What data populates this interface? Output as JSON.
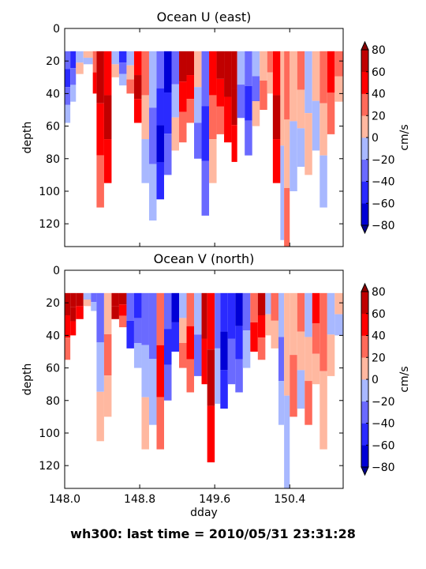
{
  "figure": {
    "suptitle": "wh300: last time = 2010/05/31 23:31:28"
  },
  "chart_data": [
    {
      "type": "heatmap",
      "title": "Ocean U (east)",
      "xlabel": "",
      "ylabel": "depth",
      "xlim": [
        148.0,
        150.97
      ],
      "ylim": [
        134,
        0
      ],
      "yticks": [
        0,
        20,
        40,
        60,
        80,
        100,
        120
      ],
      "xticks": [
        148.0,
        148.8,
        149.6,
        150.4
      ],
      "xticks_labeled": false,
      "colorbar": {
        "label": "cm/s",
        "levels": [
          -80,
          -60,
          -40,
          -20,
          0,
          20,
          40,
          60,
          80
        ],
        "colors": [
          "#0000d6",
          "#2a2aff",
          "#6a6aff",
          "#a8b8ff",
          "#ffb8a0",
          "#ff6a5a",
          "#ff0000",
          "#c00000"
        ],
        "under_color": "#00008f",
        "over_color": "#8a0000",
        "extend": "both"
      },
      "top_depth": 14,
      "columns": [
        {
          "x0": 148.0,
          "x1": 148.06,
          "bins": [
            "-40",
            "-60",
            "-40",
            "-20"
          ],
          "max_depth": 58
        },
        {
          "x0": 148.06,
          "x1": 148.12,
          "bins": [
            "-60",
            "-40",
            "-20"
          ],
          "max_depth": 45
        },
        {
          "x0": 148.12,
          "x1": 148.2,
          "bins": [
            "-20",
            "0"
          ],
          "max_depth": 28
        },
        {
          "x0": 148.2,
          "x1": 148.3,
          "bins": [
            "0",
            "-20"
          ],
          "max_depth": 22
        },
        {
          "x0": 148.3,
          "x1": 148.34,
          "bins": [
            "20",
            "40"
          ],
          "max_depth": 40
        },
        {
          "x0": 148.34,
          "x1": 148.42,
          "bins": [
            "60",
            "40",
            "20"
          ],
          "max_depth": 110
        },
        {
          "x0": 148.42,
          "x1": 148.5,
          "bins": [
            "40",
            "60",
            "40"
          ],
          "max_depth": 95
        },
        {
          "x0": 148.5,
          "x1": 148.58,
          "bins": [
            "-20",
            "0"
          ],
          "max_depth": 30
        },
        {
          "x0": 148.58,
          "x1": 148.66,
          "bins": [
            "-60",
            "-40",
            "-20"
          ],
          "max_depth": 35
        },
        {
          "x0": 148.66,
          "x1": 148.74,
          "bins": [
            "-20",
            "0",
            "20"
          ],
          "max_depth": 40
        },
        {
          "x0": 148.74,
          "x1": 148.82,
          "bins": [
            "40",
            "60",
            "40"
          ],
          "max_depth": 58
        },
        {
          "x0": 148.82,
          "x1": 148.9,
          "bins": [
            "20",
            "0",
            "-20"
          ],
          "max_depth": 95
        },
        {
          "x0": 148.9,
          "x1": 148.98,
          "bins": [
            "-20",
            "-40",
            "-20"
          ],
          "max_depth": 118
        },
        {
          "x0": 148.98,
          "x1": 149.06,
          "bins": [
            "-40",
            "-60",
            "-80",
            "-60"
          ],
          "max_depth": 105
        },
        {
          "x0": 149.06,
          "x1": 149.14,
          "bins": [
            "-80",
            "-60",
            "-40"
          ],
          "max_depth": 90
        },
        {
          "x0": 149.14,
          "x1": 149.22,
          "bins": [
            "-40",
            "-20",
            "0"
          ],
          "max_depth": 75
        },
        {
          "x0": 149.22,
          "x1": 149.3,
          "bins": [
            "60",
            "40",
            "20"
          ],
          "max_depth": 70
        },
        {
          "x0": 149.3,
          "x1": 149.38,
          "bins": [
            "60",
            "40",
            "20"
          ],
          "max_depth": 58
        },
        {
          "x0": 149.38,
          "x1": 149.46,
          "bins": [
            "0",
            "-20",
            "-40"
          ],
          "max_depth": 80
        },
        {
          "x0": 149.46,
          "x1": 149.54,
          "bins": [
            "-40",
            "-60",
            "-40"
          ],
          "max_depth": 115
        },
        {
          "x0": 149.54,
          "x1": 149.62,
          "bins": [
            "40",
            "20",
            "0"
          ],
          "max_depth": 95
        },
        {
          "x0": 149.62,
          "x1": 149.7,
          "bins": [
            "60",
            "40",
            "20"
          ],
          "max_depth": 65
        },
        {
          "x0": 149.7,
          "x1": 149.78,
          "bins": [
            "60",
            "40"
          ],
          "max_depth": 70
        },
        {
          "x0": 149.78,
          "x1": 149.84,
          "bins": [
            "80",
            "60",
            "40"
          ],
          "max_depth": 82
        },
        {
          "x0": 149.84,
          "x1": 149.92,
          "bins": [
            "-20",
            "-40"
          ],
          "max_depth": 55
        },
        {
          "x0": 149.92,
          "x1": 150.0,
          "bins": [
            "-40",
            "-60",
            "-40"
          ],
          "max_depth": 78
        },
        {
          "x0": 150.0,
          "x1": 150.08,
          "bins": [
            "-20",
            "-40",
            "0"
          ],
          "max_depth": 60
        },
        {
          "x0": 150.08,
          "x1": 150.16,
          "bins": [
            "0",
            "20"
          ],
          "max_depth": 50
        },
        {
          "x0": 150.16,
          "x1": 150.22,
          "bins": [
            "20",
            "0"
          ],
          "max_depth": 40
        },
        {
          "x0": 150.22,
          "x1": 150.3,
          "bins": [
            "40",
            "60",
            "40"
          ],
          "max_depth": 95
        },
        {
          "x0": 150.3,
          "x1": 150.34,
          "bins": [
            "0",
            "-20"
          ],
          "max_depth": 130
        },
        {
          "x0": 150.34,
          "x1": 150.4,
          "bins": [
            "20",
            "0",
            "20"
          ],
          "max_depth": 140
        },
        {
          "x0": 150.4,
          "x1": 150.48,
          "bins": [
            "0",
            "-20"
          ],
          "max_depth": 100
        },
        {
          "x0": 150.48,
          "x1": 150.56,
          "bins": [
            "20",
            "0",
            "-20"
          ],
          "max_depth": 85
        },
        {
          "x0": 150.56,
          "x1": 150.64,
          "bins": [
            "-20",
            "0"
          ],
          "max_depth": 90
        },
        {
          "x0": 150.64,
          "x1": 150.72,
          "bins": [
            "0",
            "-20"
          ],
          "max_depth": 75
        },
        {
          "x0": 150.72,
          "x1": 150.8,
          "bins": [
            "20",
            "0",
            "-20"
          ],
          "max_depth": 110
        },
        {
          "x0": 150.8,
          "x1": 150.88,
          "bins": [
            "40",
            "20"
          ],
          "max_depth": 65
        },
        {
          "x0": 150.88,
          "x1": 150.97,
          "bins": [
            "20",
            "0"
          ],
          "max_depth": 45
        }
      ]
    },
    {
      "type": "heatmap",
      "title": "Ocean V (north)",
      "xlabel": "dday",
      "ylabel": "depth",
      "xlim": [
        148.0,
        150.97
      ],
      "ylim": [
        134,
        0
      ],
      "yticks": [
        0,
        20,
        40,
        60,
        80,
        100,
        120
      ],
      "xticks": [
        148.0,
        148.8,
        149.6,
        150.4
      ],
      "xticks_labeled": true,
      "colorbar": {
        "label": "cm/s",
        "levels": [
          -80,
          -60,
          -40,
          -20,
          0,
          20,
          40,
          60,
          80
        ],
        "colors": [
          "#0000d6",
          "#2a2aff",
          "#6a6aff",
          "#a8b8ff",
          "#ffb8a0",
          "#ff6a5a",
          "#ff0000",
          "#c00000"
        ],
        "under_color": "#00008f",
        "over_color": "#8a0000",
        "extend": "both"
      },
      "top_depth": 14,
      "columns": [
        {
          "x0": 148.0,
          "x1": 148.06,
          "bins": [
            "60",
            "40",
            "20"
          ],
          "max_depth": 55
        },
        {
          "x0": 148.06,
          "x1": 148.12,
          "bins": [
            "80",
            "60",
            "40"
          ],
          "max_depth": 40
        },
        {
          "x0": 148.12,
          "x1": 148.2,
          "bins": [
            "60",
            "40"
          ],
          "max_depth": 30
        },
        {
          "x0": 148.2,
          "x1": 148.28,
          "bins": [
            "-20",
            "0"
          ],
          "max_depth": 22
        },
        {
          "x0": 148.28,
          "x1": 148.34,
          "bins": [
            "-40",
            "-20"
          ],
          "max_depth": 25
        },
        {
          "x0": 148.34,
          "x1": 148.42,
          "bins": [
            "-40",
            "-20",
            "0"
          ],
          "max_depth": 105
        },
        {
          "x0": 148.42,
          "x1": 148.5,
          "bins": [
            "0",
            "20",
            "0"
          ],
          "max_depth": 90
        },
        {
          "x0": 148.5,
          "x1": 148.58,
          "bins": [
            "80",
            "60"
          ],
          "max_depth": 30
        },
        {
          "x0": 148.58,
          "x1": 148.66,
          "bins": [
            "60",
            "40",
            "20"
          ],
          "max_depth": 35
        },
        {
          "x0": 148.66,
          "x1": 148.74,
          "bins": [
            "-40",
            "-60"
          ],
          "max_depth": 48
        },
        {
          "x0": 148.74,
          "x1": 148.82,
          "bins": [
            "-60",
            "-40",
            "-20"
          ],
          "max_depth": 60
        },
        {
          "x0": 148.82,
          "x1": 148.9,
          "bins": [
            "-40",
            "-20",
            "0"
          ],
          "max_depth": 110
        },
        {
          "x0": 148.9,
          "x1": 148.98,
          "bins": [
            "-40",
            "-20"
          ],
          "max_depth": 95
        },
        {
          "x0": 148.98,
          "x1": 149.06,
          "bins": [
            "20",
            "40",
            "20"
          ],
          "max_depth": 110
        },
        {
          "x0": 149.06,
          "x1": 149.14,
          "bins": [
            "-40",
            "-60",
            "-40"
          ],
          "max_depth": 80
        },
        {
          "x0": 149.14,
          "x1": 149.22,
          "bins": [
            "-80",
            "-60"
          ],
          "max_depth": 50
        },
        {
          "x0": 149.22,
          "x1": 149.3,
          "bins": [
            "-20",
            "0",
            "20"
          ],
          "max_depth": 60
        },
        {
          "x0": 149.3,
          "x1": 149.38,
          "bins": [
            "20",
            "40",
            "20"
          ],
          "max_depth": 75
        },
        {
          "x0": 149.38,
          "x1": 149.46,
          "bins": [
            "-20",
            "-40"
          ],
          "max_depth": 65
        },
        {
          "x0": 149.46,
          "x1": 149.52,
          "bins": [
            "60",
            "40"
          ],
          "max_depth": 70
        },
        {
          "x0": 149.52,
          "x1": 149.6,
          "bins": [
            "40",
            "60",
            "40"
          ],
          "max_depth": 118
        },
        {
          "x0": 149.6,
          "x1": 149.66,
          "bins": [
            "-40",
            "-20"
          ],
          "max_depth": 82
        },
        {
          "x0": 149.66,
          "x1": 149.74,
          "bins": [
            "-60",
            "-80",
            "-60"
          ],
          "max_depth": 85
        },
        {
          "x0": 149.74,
          "x1": 149.82,
          "bins": [
            "-60",
            "-40"
          ],
          "max_depth": 70
        },
        {
          "x0": 149.82,
          "x1": 149.9,
          "bins": [
            "-80",
            "-60",
            "-40"
          ],
          "max_depth": 75
        },
        {
          "x0": 149.9,
          "x1": 149.98,
          "bins": [
            "-40",
            "-20"
          ],
          "max_depth": 60
        },
        {
          "x0": 149.98,
          "x1": 150.06,
          "bins": [
            "20",
            "40"
          ],
          "max_depth": 50
        },
        {
          "x0": 150.06,
          "x1": 150.14,
          "bins": [
            "60",
            "40",
            "20"
          ],
          "max_depth": 55
        },
        {
          "x0": 150.14,
          "x1": 150.2,
          "bins": [
            "-20",
            "0"
          ],
          "max_depth": 40
        },
        {
          "x0": 150.2,
          "x1": 150.28,
          "bins": [
            "20",
            "0"
          ],
          "max_depth": 48
        },
        {
          "x0": 150.28,
          "x1": 150.34,
          "bins": [
            "-20",
            "-40",
            "-20"
          ],
          "max_depth": 95
        },
        {
          "x0": 150.34,
          "x1": 150.4,
          "bins": [
            "0",
            "-20"
          ],
          "max_depth": 140
        },
        {
          "x0": 150.4,
          "x1": 150.48,
          "bins": [
            "0",
            "20"
          ],
          "max_depth": 90
        },
        {
          "x0": 150.48,
          "x1": 150.56,
          "bins": [
            "20",
            "0",
            "-20"
          ],
          "max_depth": 85
        },
        {
          "x0": 150.56,
          "x1": 150.64,
          "bins": [
            "-20",
            "0",
            "20"
          ],
          "max_depth": 95
        },
        {
          "x0": 150.64,
          "x1": 150.72,
          "bins": [
            "40",
            "20",
            "0"
          ],
          "max_depth": 70
        },
        {
          "x0": 150.72,
          "x1": 150.8,
          "bins": [
            "20",
            "0"
          ],
          "max_depth": 110
        },
        {
          "x0": 150.8,
          "x1": 150.88,
          "bins": [
            "-20",
            "0"
          ],
          "max_depth": 65
        },
        {
          "x0": 150.88,
          "x1": 150.97,
          "bins": [
            "0",
            "-20"
          ],
          "max_depth": 40
        }
      ]
    }
  ]
}
